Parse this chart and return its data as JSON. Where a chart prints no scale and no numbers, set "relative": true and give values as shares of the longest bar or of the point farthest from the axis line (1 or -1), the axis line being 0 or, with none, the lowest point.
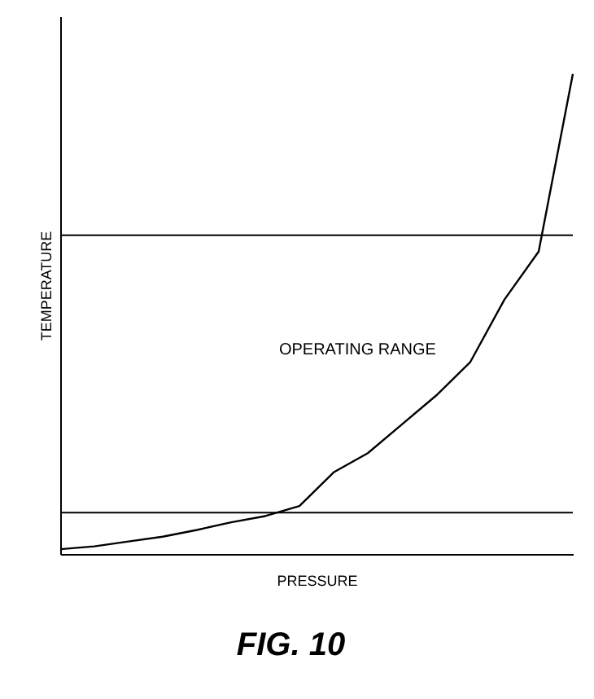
{
  "chart_data": {
    "type": "line",
    "relative": true,
    "xlabel": "PRESSURE",
    "ylabel": "TEMPERATURE",
    "categories": [
      null,
      null,
      null,
      null,
      null,
      null,
      null,
      null,
      null,
      null,
      null,
      null,
      null,
      null,
      null,
      null
    ],
    "series": [
      {
        "color": "#000000",
        "values": [
          0.01,
          0.016,
          0.026,
          0.036,
          0.05,
          0.066,
          0.079,
          0.1,
          0.17,
          0.21,
          0.27,
          0.33,
          0.4,
          0.53,
          0.63,
          1.0
        ]
      }
    ],
    "ref_lines": [
      {
        "axis": "y",
        "value": 0.664,
        "color": "#000000"
      },
      {
        "axis": "y",
        "value": 0.086,
        "color": "#000000"
      }
    ],
    "annotations": [
      "OPERATING RANGE",
      "FIG. 10"
    ],
    "grid": false,
    "tick_labels": false,
    "marker": "none",
    "line_style": "solid"
  }
}
